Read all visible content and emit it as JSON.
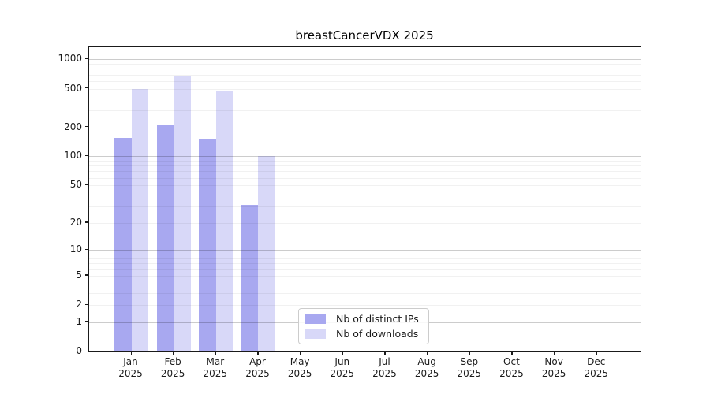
{
  "title": "breastCancerVDX 2025",
  "chart_data": {
    "type": "bar",
    "title": "breastCancerVDX 2025",
    "categories": [
      "Jan",
      "Feb",
      "Mar",
      "Apr",
      "May",
      "Jun",
      "Jul",
      "Aug",
      "Sep",
      "Oct",
      "Nov",
      "Dec"
    ],
    "category_year": "2025",
    "series": [
      {
        "name": "Nb of distinct IPs",
        "color": "#a8a8f0",
        "values": [
          155,
          210,
          153,
          31,
          null,
          null,
          null,
          null,
          null,
          null,
          null,
          null
        ]
      },
      {
        "name": "Nb of downloads",
        "color": "#d8d8f8",
        "values": [
          500,
          670,
          480,
          100,
          null,
          null,
          null,
          null,
          null,
          null,
          null,
          null
        ]
      }
    ],
    "y_ticks": [
      1000,
      500,
      200,
      100,
      50,
      20,
      10,
      5,
      2,
      1,
      0
    ],
    "y_major_gridlines": [
      1000,
      100,
      10,
      1
    ],
    "y_minor_gridlines": [
      900,
      800,
      700,
      600,
      500,
      400,
      300,
      200,
      90,
      80,
      70,
      60,
      50,
      40,
      30,
      20,
      9,
      8,
      7,
      6,
      5,
      4,
      3,
      2
    ],
    "y_scale": "log10(1+x)",
    "ylim": [
      0,
      1260
    ],
    "xlabel": "",
    "ylabel": "",
    "grid": true,
    "legend_position": "lower-center",
    "legend_entries": [
      "Nb of distinct IPs",
      "Nb of downloads"
    ]
  },
  "colors": {
    "distinct_ips": "#a8a8f0",
    "downloads": "#d8d8f8",
    "axis": "#1a1a1a",
    "background": "#ffffff"
  }
}
